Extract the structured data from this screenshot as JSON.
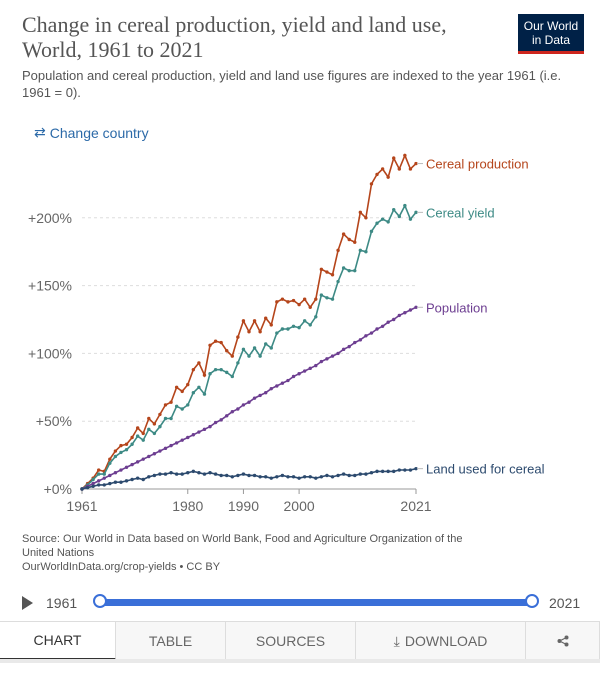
{
  "header": {
    "title": "Change in cereal production, yield and land use, World, 1961 to 2021",
    "subtitle": "Population and cereal production, yield and land use figures are indexed to the year 1961 (i.e. 1961 = 0).",
    "logo_line1": "Our World",
    "logo_line2": "in Data",
    "change_country": "Change country"
  },
  "chart_data": {
    "type": "line",
    "x": [
      1961,
      1962,
      1963,
      1964,
      1965,
      1966,
      1967,
      1968,
      1969,
      1970,
      1971,
      1972,
      1973,
      1974,
      1975,
      1976,
      1977,
      1978,
      1979,
      1980,
      1981,
      1982,
      1983,
      1984,
      1985,
      1986,
      1987,
      1988,
      1989,
      1990,
      1991,
      1992,
      1993,
      1994,
      1995,
      1996,
      1997,
      1998,
      1999,
      2000,
      2001,
      2002,
      2003,
      2004,
      2005,
      2006,
      2007,
      2008,
      2009,
      2010,
      2011,
      2012,
      2013,
      2014,
      2015,
      2016,
      2017,
      2018,
      2019,
      2020,
      2021
    ],
    "series": [
      {
        "name": "Cereal production",
        "color": "#b5451b",
        "values": [
          0,
          4,
          8,
          14,
          13,
          22,
          28,
          32,
          33,
          38,
          45,
          41,
          52,
          48,
          55,
          62,
          64,
          75,
          72,
          77,
          88,
          93,
          84,
          106,
          109,
          108,
          102,
          98,
          112,
          124,
          116,
          124,
          116,
          126,
          121,
          138,
          140,
          138,
          139,
          136,
          140,
          134,
          140,
          162,
          160,
          158,
          176,
          188,
          184,
          182,
          204,
          200,
          225,
          232,
          236,
          230,
          244,
          236,
          246,
          236,
          240
        ]
      },
      {
        "name": "Cereal yield",
        "color": "#3d8a85",
        "values": [
          0,
          3,
          7,
          11,
          11,
          19,
          24,
          27,
          29,
          33,
          39,
          36,
          44,
          41,
          46,
          52,
          52,
          61,
          59,
          62,
          71,
          75,
          70,
          85,
          88,
          88,
          86,
          83,
          93,
          103,
          98,
          104,
          98,
          107,
          104,
          115,
          118,
          118,
          120,
          119,
          124,
          121,
          127,
          143,
          141,
          140,
          153,
          163,
          161,
          161,
          176,
          175,
          190,
          196,
          199,
          197,
          206,
          201,
          209,
          199,
          204
        ]
      },
      {
        "name": "Population",
        "color": "#6d3e91",
        "values": [
          0,
          2,
          4,
          6,
          8,
          10,
          12,
          14,
          16,
          18,
          20,
          22,
          24,
          26,
          28,
          30,
          32,
          34,
          36,
          38,
          40,
          42,
          44,
          46,
          49,
          51,
          54,
          57,
          59,
          62,
          64,
          67,
          69,
          71,
          74,
          76,
          78,
          80,
          83,
          85,
          87,
          89,
          91,
          94,
          96,
          98,
          100,
          103,
          105,
          108,
          110,
          113,
          115,
          118,
          120,
          123,
          125,
          128,
          130,
          132,
          134
        ]
      },
      {
        "name": "Land used for cereal",
        "color": "#2c4a6e",
        "values": [
          0,
          1,
          2,
          3,
          3,
          4,
          5,
          5,
          6,
          7,
          8,
          7,
          9,
          10,
          11,
          11,
          12,
          11,
          11,
          12,
          13,
          12,
          11,
          12,
          11,
          10,
          10,
          9,
          10,
          11,
          10,
          10,
          9,
          9,
          8,
          9,
          10,
          9,
          9,
          8,
          9,
          9,
          8,
          9,
          10,
          9,
          10,
          11,
          10,
          10,
          11,
          11,
          12,
          13,
          13,
          13,
          13,
          14,
          14,
          14,
          15
        ]
      }
    ],
    "y_ticks": [
      "+0%",
      "+50%",
      "+100%",
      "+150%",
      "+200%"
    ],
    "y_tick_values": [
      0,
      50,
      100,
      150,
      200
    ],
    "x_ticks": [
      "1961",
      "1980",
      "1990",
      "2000",
      "2021"
    ],
    "x_tick_values": [
      1961,
      1980,
      1990,
      2000,
      2021
    ],
    "xlim": [
      1961,
      2021
    ],
    "ylim": [
      0,
      250
    ],
    "grid": "horizontal dashed",
    "legend": "right, at line ends"
  },
  "footer": {
    "source_line1": "Source: Our World in Data based on World Bank, Food and Agriculture Organization of the",
    "source_line2": "United Nations",
    "source_line3": "OurWorldInData.org/crop-yields • CC BY"
  },
  "timeline": {
    "start": "1961",
    "end": "2021"
  },
  "tabs": [
    "CHART",
    "TABLE",
    "SOURCES",
    "DOWNLOAD"
  ],
  "icons": {
    "swap": "swap-arrows-icon",
    "play": "play-icon",
    "download": "download-icon",
    "share": "share-icon"
  }
}
